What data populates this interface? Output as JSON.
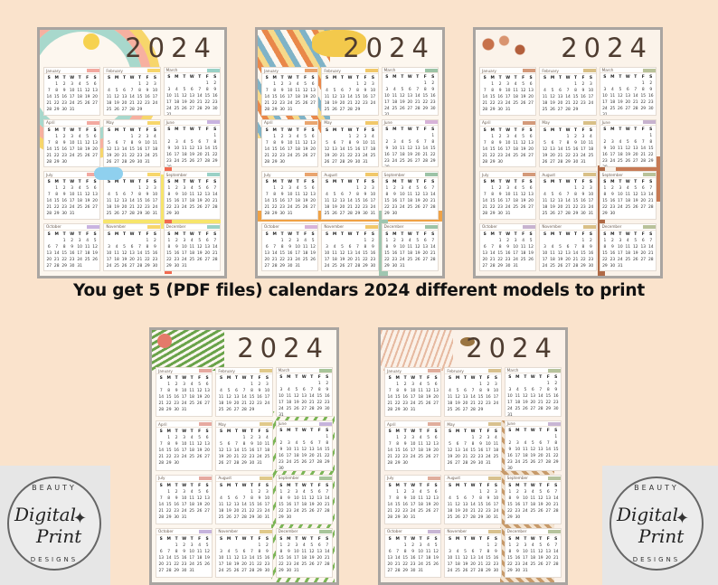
{
  "headline": "You get 5 (PDF files) calendars 2024 different models to print",
  "year": "2024",
  "day_headers": [
    "S",
    "M",
    "T",
    "W",
    "T",
    "F",
    "S"
  ],
  "months": [
    {
      "name": "January",
      "offset": 1,
      "days": 31
    },
    {
      "name": "February",
      "offset": 4,
      "days": 29
    },
    {
      "name": "March",
      "offset": 5,
      "days": 31
    },
    {
      "name": "April",
      "offset": 1,
      "days": 30
    },
    {
      "name": "May",
      "offset": 3,
      "days": 31
    },
    {
      "name": "June",
      "offset": 6,
      "days": 30
    },
    {
      "name": "July",
      "offset": 1,
      "days": 31
    },
    {
      "name": "August",
      "offset": 4,
      "days": 31
    },
    {
      "name": "September",
      "offset": 0,
      "days": 30
    },
    {
      "name": "October",
      "offset": 2,
      "days": 31
    },
    {
      "name": "November",
      "offset": 5,
      "days": 30
    },
    {
      "name": "December",
      "offset": 0,
      "days": 31
    }
  ],
  "calendars": [
    {
      "id": "cal-1",
      "theme": "rainbow-kids",
      "tab_colors": [
        "#f3a9a0",
        "#f7d66b",
        "#9ad1c6",
        "#f3a9a0",
        "#f7d66b",
        "#c9b3e0",
        "#f3a9a0",
        "#f7d66b",
        "#9ad1c6",
        "#c9b3e0",
        "#f7d66b",
        "#9ad1c6"
      ]
    },
    {
      "id": "cal-2",
      "theme": "boho-sunburst",
      "tab_colors": [
        "#e9a56f",
        "#f1c86a",
        "#9cc3a6",
        "#e9a56f",
        "#f1c86a",
        "#d7b3d9",
        "#e9a56f",
        "#f1c86a",
        "#9cc3a6",
        "#d7b3d9",
        "#f1c86a",
        "#9cc3a6"
      ]
    },
    {
      "id": "cal-3",
      "theme": "autumn-leaves",
      "tab_colors": [
        "#d49a7a",
        "#d9c087",
        "#b9c29a",
        "#d49a7a",
        "#d9c087",
        "#c8b3cf",
        "#d49a7a",
        "#d9c087",
        "#b9c29a",
        "#c8b3cf",
        "#d9c087",
        "#b9c29a"
      ]
    },
    {
      "id": "cal-4",
      "theme": "tropical-palm",
      "tab_colors": [
        "#e6a9a0",
        "#e0c98a",
        "#a8c59a",
        "#e6a9a0",
        "#e0c98a",
        "#c6b3dc",
        "#e6a9a0",
        "#e0c98a",
        "#a8c59a",
        "#c6b3dc",
        "#e0c98a",
        "#a8c59a"
      ]
    },
    {
      "id": "cal-5",
      "theme": "butterfly-neutral",
      "tab_colors": [
        "#e0ad9c",
        "#d8c18e",
        "#b6c39d",
        "#e0ad9c",
        "#d8c18e",
        "#c8b6d4",
        "#e0ad9c",
        "#d8c18e",
        "#b6c39d",
        "#c8b6d4",
        "#d8c18e",
        "#b6c39d"
      ]
    }
  ],
  "logo": {
    "top_text": "BEAUTY",
    "script_1": "Digital",
    "script_2": "Print",
    "bottom_text": "DESIGNS"
  }
}
